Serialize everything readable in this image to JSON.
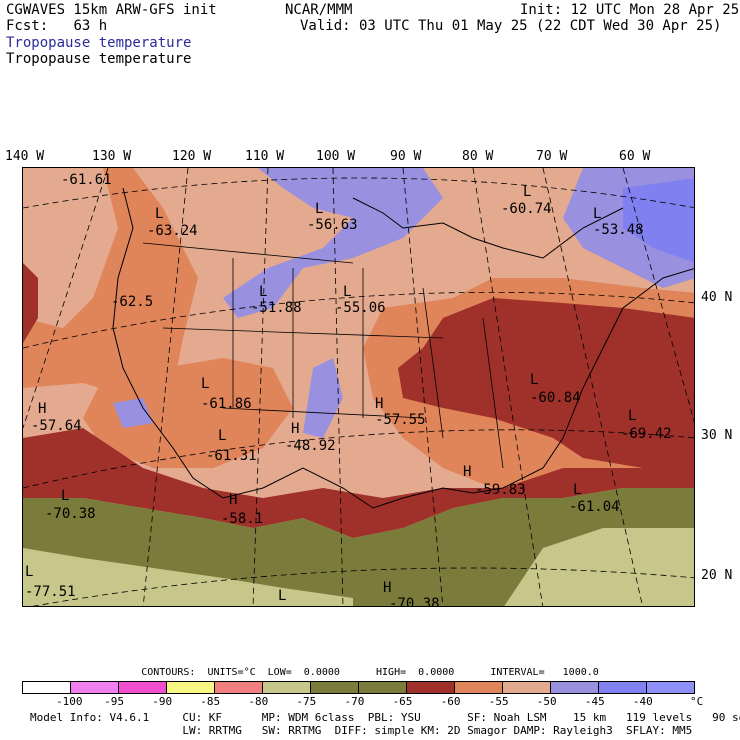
{
  "header": {
    "model": "CGWAVES 15km ARW-GFS init",
    "fcst_label": "Fcst:",
    "fcst_value": "63 h",
    "org": "NCAR/MMM",
    "init": "Init: 12 UTC Mon 28 Apr 25",
    "valid": "Valid: 03 UTC Thu 01 May 25 (22 CDT Wed 30 Apr 25)",
    "field_title_1": "Tropopause temperature",
    "field_title_2": "Tropopause temperature"
  },
  "axes": {
    "longitude_labels": [
      "140 W",
      "130 W",
      "120 W",
      "110 W",
      "100 W",
      "90 W",
      "80 W",
      "70 W",
      "60 W"
    ],
    "latitude_labels": [
      "40 N",
      "30 N",
      "20 N"
    ]
  },
  "map_labels": [
    {
      "sym": "",
      "value": "-61.61"
    },
    {
      "sym": "L",
      "value": "-63.24"
    },
    {
      "sym": "L",
      "value": "-56.63"
    },
    {
      "sym": "L",
      "value": "-60.74"
    },
    {
      "sym": "L",
      "value": "-53.48"
    },
    {
      "sym": "",
      "value": "-62.5"
    },
    {
      "sym": "L",
      "value": "-51.88"
    },
    {
      "sym": "L",
      "value": "-55.06"
    },
    {
      "sym": "L",
      "value": "-61.86"
    },
    {
      "sym": "H",
      "value": "-57.64"
    },
    {
      "sym": "L",
      "value": "-61.31"
    },
    {
      "sym": "H",
      "value": "-48.92"
    },
    {
      "sym": "H",
      "value": "-57.55"
    },
    {
      "sym": "L",
      "value": "-60.84"
    },
    {
      "sym": "L",
      "value": "-69.42"
    },
    {
      "sym": "L",
      "value": "-70.38"
    },
    {
      "sym": "H",
      "value": "-58.1"
    },
    {
      "sym": "H",
      "value": "-59.83"
    },
    {
      "sym": "L",
      "value": "-61.04"
    },
    {
      "sym": "L",
      "value": "-77.51"
    },
    {
      "sym": "H",
      "value": "-70.38"
    },
    {
      "sym": "H",
      "value": ""
    },
    {
      "sym": "L",
      "value": ""
    }
  ],
  "contours_line": "CONTOURS:  UNITS=°C  LOW=  0.0000      HIGH=  0.0000      INTERVAL=   1000.0",
  "colorbar": {
    "colors": [
      "#ffffff",
      "#f080f0",
      "#f050d0",
      "#f7f783",
      "#f08080",
      "#c7c78c",
      "#7b7b3b",
      "#7b7b3b",
      "#a0302a",
      "#e0845a",
      "#e4aa90",
      "#9990e0",
      "#8080f0",
      "#8f8ff8"
    ],
    "labels": [
      "-100",
      "-95",
      "-90",
      "-85",
      "-80",
      "-75",
      "-70",
      "-65",
      "-60",
      "-55",
      "-50",
      "-45",
      "-40"
    ],
    "unit": "°C"
  },
  "info": {
    "line1": "Model Info: V4.6.1     CU: KF      MP: WDM 6class  PBL: YSU       SF: Noah LSM    15 km   119 levels   90 sec",
    "line2": "                       LW: RRTMG   SW: RRTMG  DIFF: simple KM: 2D Smagor DAMP: Rayleigh3  SFLAY: MM5"
  }
}
